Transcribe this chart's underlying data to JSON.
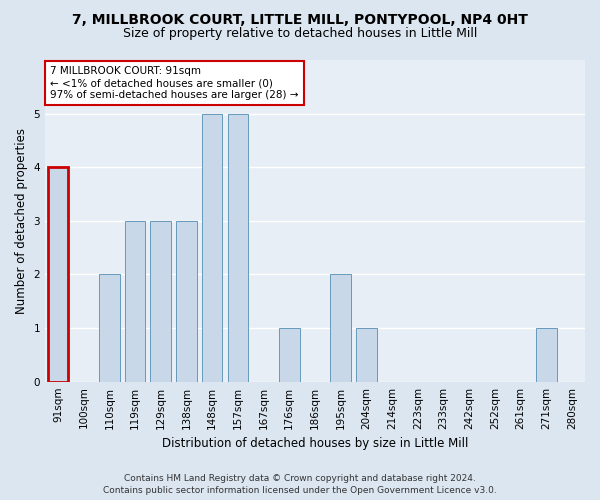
{
  "title": "7, MILLBROOK COURT, LITTLE MILL, PONTYPOOL, NP4 0HT",
  "subtitle": "Size of property relative to detached houses in Little Mill",
  "xlabel": "Distribution of detached houses by size in Little Mill",
  "ylabel": "Number of detached properties",
  "categories": [
    "91sqm",
    "100sqm",
    "110sqm",
    "119sqm",
    "129sqm",
    "138sqm",
    "148sqm",
    "157sqm",
    "167sqm",
    "176sqm",
    "186sqm",
    "195sqm",
    "204sqm",
    "214sqm",
    "223sqm",
    "233sqm",
    "242sqm",
    "252sqm",
    "261sqm",
    "271sqm",
    "280sqm"
  ],
  "values": [
    4,
    0,
    2,
    3,
    3,
    3,
    5,
    5,
    0,
    1,
    0,
    2,
    1,
    0,
    0,
    0,
    0,
    0,
    0,
    1,
    0
  ],
  "bar_color": "#c8d8e8",
  "bar_edge_color": "#6699bb",
  "highlight_edge_color": "#cc0000",
  "annotation_text": "7 MILLBROOK COURT: 91sqm\n← <1% of detached houses are smaller (0)\n97% of semi-detached houses are larger (28) →",
  "annotation_box_color": "white",
  "annotation_box_edge_color": "#cc0000",
  "ylim": [
    0,
    6
  ],
  "yticks": [
    0,
    1,
    2,
    3,
    4,
    5
  ],
  "footer_line1": "Contains HM Land Registry data © Crown copyright and database right 2024.",
  "footer_line2": "Contains public sector information licensed under the Open Government Licence v3.0.",
  "bg_color": "#dce6f0",
  "plot_bg_color": "#e8eef5",
  "title_fontsize": 10,
  "subtitle_fontsize": 9,
  "axis_label_fontsize": 8.5,
  "tick_fontsize": 7.5,
  "annotation_fontsize": 7.5,
  "footer_fontsize": 6.5
}
